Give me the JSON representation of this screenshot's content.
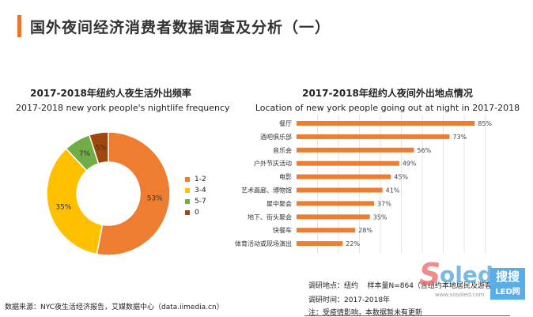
{
  "header": {
    "title": "国外夜间经济消费者数据调查及分析（一）"
  },
  "colors": {
    "accent": "#e8772e",
    "orange": "#ed7d31",
    "yellow": "#ffc000",
    "green": "#70ad47",
    "brown": "#9e480e"
  },
  "chart_data": [
    {
      "type": "pie",
      "donut": true,
      "title": "2017-2018年纽约人夜生活外出频率",
      "subtitle": "2017-2018 new york people's nightlife frequency",
      "categories": [
        "1-2",
        "3-4",
        "5-7",
        "0"
      ],
      "values": [
        53,
        35,
        7,
        5
      ],
      "labels": [
        "53%",
        "35%",
        "7%",
        "5%"
      ],
      "legend": "right"
    },
    {
      "type": "bar",
      "orientation": "horizontal",
      "title": "2017-2018年纽约人夜间外出地点情况",
      "subtitle": "Location of new york people going out at night in 2017-2018",
      "categories": [
        "餐厅",
        "酒吧俱乐部",
        "音乐会",
        "户外节庆活动",
        "电影",
        "艺术画廊、博物馆",
        "屋中聚会",
        "地下、街头聚会",
        "快餐车",
        "体育活动或现场演出"
      ],
      "values": [
        85,
        73,
        56,
        49,
        45,
        41,
        37,
        35,
        28,
        22
      ],
      "labels": [
        "85%",
        "73%",
        "56%",
        "49%",
        "45%",
        "41%",
        "37%",
        "35%",
        "28%",
        "22%"
      ],
      "xlim": [
        0,
        100
      ],
      "grid": true
    }
  ],
  "notes": {
    "location": "调研地点：纽约",
    "sample": "样本量N=864（含纽约本地居民及游客）",
    "time": "调研时间：2017-2018年",
    "remark": "注：受疫情影响，本数据暂未有更新"
  },
  "source": "数据来源：NYC夜生活经济报告，艾媒数据中心（data.iimedia.cn）",
  "watermark": {
    "logo": "soled",
    "site": "www.sosoled.com",
    "badge1": "搜搜",
    "badge2": "LED网"
  }
}
